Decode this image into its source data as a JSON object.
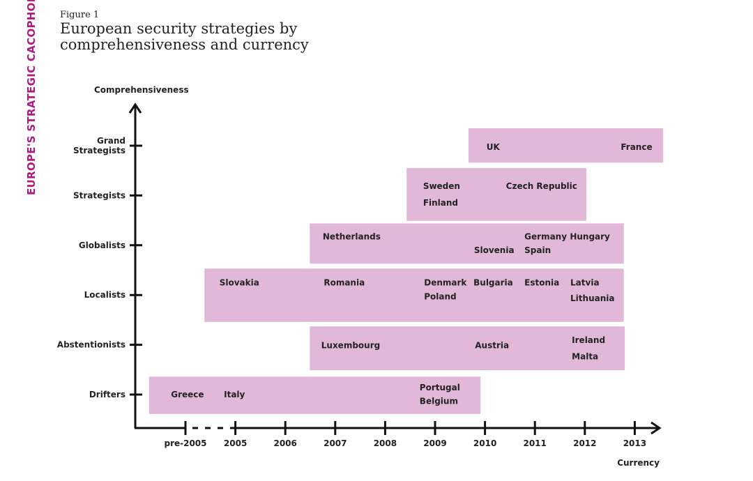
{
  "sidebar_label": "EUROPE'S STRATEGIC CACOPHONY",
  "figure_label": "Figure 1",
  "title": "European security strategies by comprehensiveness and currency",
  "colors": {
    "band": "#e2b8d9",
    "accent": "#b0197e",
    "axis": "#111111"
  },
  "chart_data": {
    "type": "range-band diagram",
    "ylabel": "Comprehensiveness",
    "xlabel": "Currency",
    "x_ticks": [
      "pre-2005",
      "2005",
      "2006",
      "2007",
      "2008",
      "2009",
      "2010",
      "2011",
      "2012",
      "2013"
    ],
    "y_levels": [
      "Drifters",
      "Abstentionists",
      "Localists",
      "Globalists",
      "Strategists",
      "Grand Strategists"
    ],
    "bands": [
      {
        "level": "Grand Strategists",
        "x_from": 5.67,
        "x_to": 9.57,
        "y_from": 4.66,
        "y_to": 5.35
      },
      {
        "level": "Strategists",
        "x_from": 4.43,
        "x_to": 8.03,
        "y_from": 3.49,
        "y_to": 4.55
      },
      {
        "level": "Globalists",
        "x_from": 2.49,
        "x_to": 8.78,
        "y_from": 2.63,
        "y_to": 3.44
      },
      {
        "level": "Localists",
        "x_from": 0.38,
        "x_to": 8.78,
        "y_from": 1.46,
        "y_to": 2.53
      },
      {
        "level": "Abstentionists",
        "x_from": 2.49,
        "x_to": 8.8,
        "y_from": 0.49,
        "y_to": 1.37
      },
      {
        "level": "Drifters",
        "x_from": -0.73,
        "x_to": 5.91,
        "y_from": -0.39,
        "y_to": 0.36
      }
    ],
    "countries": [
      {
        "name": "UK",
        "x": 6.03,
        "y": 4.97
      },
      {
        "name": "France",
        "x": 8.72,
        "y": 4.97
      },
      {
        "name": "Sweden",
        "x": 4.76,
        "y": 4.19
      },
      {
        "name": "Czech Republic",
        "x": 6.42,
        "y": 4.19
      },
      {
        "name": "Finland",
        "x": 4.76,
        "y": 3.85
      },
      {
        "name": "Netherlands",
        "x": 2.75,
        "y": 3.17
      },
      {
        "name": "Slovenia",
        "x": 5.78,
        "y": 2.9
      },
      {
        "name": "Germany",
        "x": 6.79,
        "y": 3.17
      },
      {
        "name": "Spain",
        "x": 6.79,
        "y": 2.9
      },
      {
        "name": "Hungary",
        "x": 7.7,
        "y": 3.17
      },
      {
        "name": "Slovakia",
        "x": 0.68,
        "y": 2.25
      },
      {
        "name": "Romania",
        "x": 2.77,
        "y": 2.25
      },
      {
        "name": "Denmark",
        "x": 4.78,
        "y": 2.25
      },
      {
        "name": "Poland",
        "x": 4.78,
        "y": 1.97
      },
      {
        "name": "Bulgaria",
        "x": 5.77,
        "y": 2.25
      },
      {
        "name": "Estonia",
        "x": 6.79,
        "y": 2.25
      },
      {
        "name": "Latvia",
        "x": 7.71,
        "y": 2.25
      },
      {
        "name": "Lithuania",
        "x": 7.71,
        "y": 1.93
      },
      {
        "name": "Luxembourg",
        "x": 2.72,
        "y": 0.99
      },
      {
        "name": "Austria",
        "x": 5.8,
        "y": 0.99
      },
      {
        "name": "Ireland",
        "x": 7.74,
        "y": 1.09
      },
      {
        "name": "Malta",
        "x": 7.74,
        "y": 0.76
      },
      {
        "name": "Greece",
        "x": -0.29,
        "y": 0
      },
      {
        "name": "Italy",
        "x": 0.77,
        "y": 0
      },
      {
        "name": "Portugal",
        "x": 4.69,
        "y": 0.14
      },
      {
        "name": "Belgium",
        "x": 4.69,
        "y": -0.13
      }
    ]
  }
}
